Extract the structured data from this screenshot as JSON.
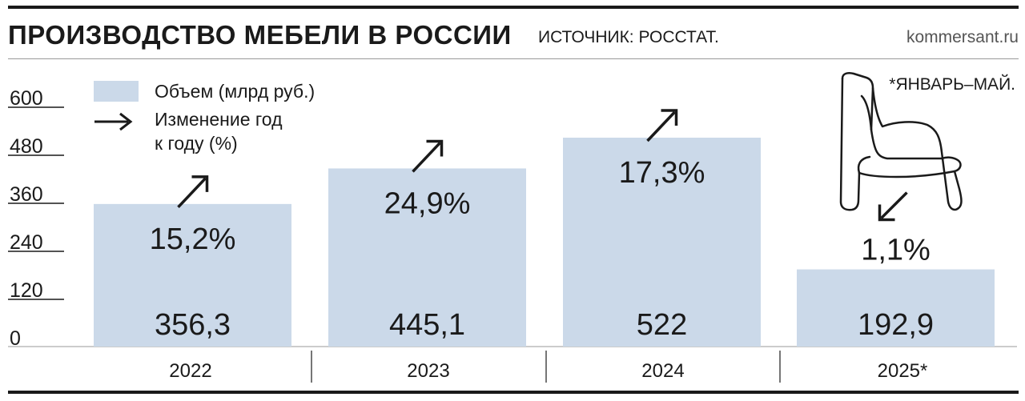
{
  "header": {
    "title": "ПРОИЗВОДСТВО МЕБЕЛИ В РОССИИ",
    "source": "ИСТОЧНИК: РОССТАТ.",
    "brand": "kommersant.ru"
  },
  "legend": {
    "volume": "Объем (млрд руб.)",
    "change_line1": "Изменение год",
    "change_line2": "к году (%)"
  },
  "footnote": "*ЯНВАРЬ–МАЙ.",
  "colors": {
    "bar": "#cbd9e9",
    "ink": "#1a1a1a",
    "rule": "#9a9a9a"
  },
  "icons": [
    "arrow-up-right-icon",
    "arrow-down-left-icon",
    "armchair-icon"
  ],
  "chart_data": {
    "type": "bar",
    "categories": [
      "2022",
      "2023",
      "2024",
      "2025*"
    ],
    "values": [
      356.3,
      445.1,
      522,
      192.9
    ],
    "value_labels": [
      "356,3",
      "445,1",
      "522",
      "192,9"
    ],
    "changes": [
      {
        "label": "15,2%",
        "direction": "up"
      },
      {
        "label": "24,9%",
        "direction": "up"
      },
      {
        "label": "17,3%",
        "direction": "up"
      },
      {
        "label": "1,1%",
        "direction": "down"
      }
    ],
    "y_ticks": [
      0,
      120,
      240,
      360,
      480,
      600
    ],
    "ylim": [
      0,
      600
    ]
  }
}
